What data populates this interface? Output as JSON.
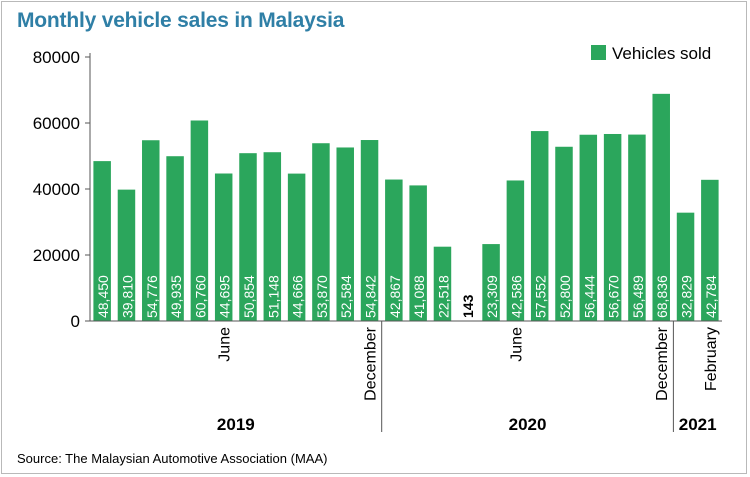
{
  "title": "Monthly vehicle sales in Malaysia",
  "source": "Source: The Malaysian Automotive Association (MAA)",
  "colors": {
    "bar": "#2ba65c",
    "title": "#2f7fa6",
    "text": "#000000",
    "axis": "#555555",
    "label": "#ffffff"
  },
  "chart_data": {
    "type": "bar",
    "title": "Monthly vehicle sales in Malaysia",
    "xlabel": "",
    "ylabel": "",
    "ylim": [
      0,
      80000
    ],
    "yticks": [
      0,
      20000,
      40000,
      60000,
      80000
    ],
    "legend": {
      "label": "Vehicles sold",
      "position": "top-right"
    },
    "categories": [
      "2019-01",
      "2019-02",
      "2019-03",
      "2019-04",
      "2019-05",
      "2019-06",
      "2019-07",
      "2019-08",
      "2019-09",
      "2019-10",
      "2019-11",
      "2019-12",
      "2020-01",
      "2020-02",
      "2020-03",
      "2020-04",
      "2020-05",
      "2020-06",
      "2020-07",
      "2020-08",
      "2020-09",
      "2020-10",
      "2020-11",
      "2020-12",
      "2021-01",
      "2021-02"
    ],
    "series": [
      {
        "name": "Vehicles sold",
        "values": [
          48450,
          39810,
          54776,
          49935,
          60760,
          44695,
          50854,
          51148,
          44666,
          53870,
          52584,
          54842,
          42867,
          41088,
          22518,
          143,
          23309,
          42586,
          57552,
          52800,
          56444,
          56670,
          56489,
          68836,
          32829,
          42784
        ]
      }
    ],
    "data_labels": [
      "48,450",
      "39,810",
      "54,776",
      "49,935",
      "60,760",
      "44,695",
      "50,854",
      "51,148",
      "44,666",
      "53,870",
      "52,584",
      "54,842",
      "42,867",
      "41,088",
      "22,518",
      "143",
      "23,309",
      "42,586",
      "57,552",
      "52,800",
      "56,444",
      "56,670",
      "56,489",
      "68,836",
      "32,829",
      "42,784"
    ],
    "month_labels": [
      {
        "index": 5,
        "text": "June"
      },
      {
        "index": 11,
        "text": "December"
      },
      {
        "index": 17,
        "text": "June"
      },
      {
        "index": 23,
        "text": "December"
      },
      {
        "index": 25,
        "text": "February"
      }
    ],
    "year_groups": [
      {
        "label": "2019",
        "start": 0,
        "end": 11
      },
      {
        "label": "2020",
        "start": 12,
        "end": 23
      },
      {
        "label": "2021",
        "start": 24,
        "end": 25
      }
    ]
  }
}
